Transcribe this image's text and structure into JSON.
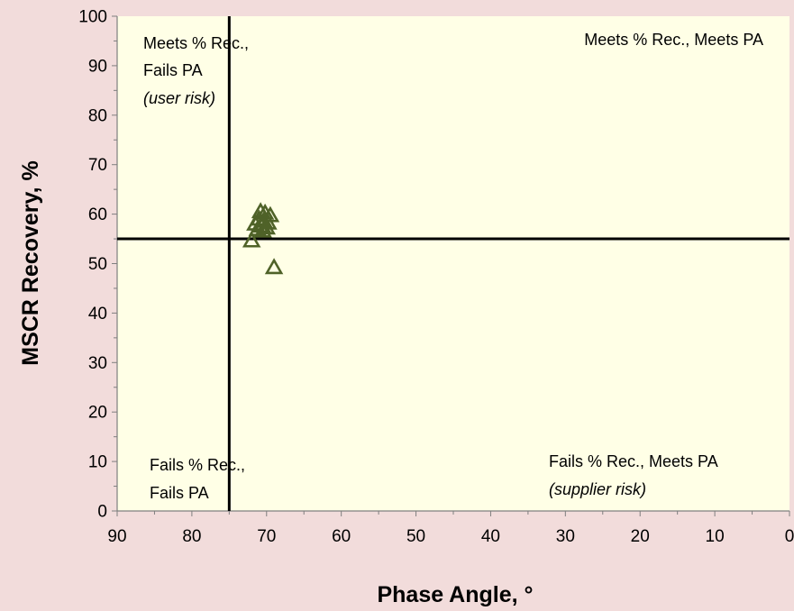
{
  "chart_data": {
    "type": "scatter",
    "title": "",
    "xlabel": "Phase Angle, °",
    "ylabel": "MSCR Recovery, %",
    "xlim": [
      90,
      0
    ],
    "ylim": [
      0,
      100
    ],
    "x_reversed": true,
    "x_ticks": [
      90,
      80,
      70,
      60,
      50,
      40,
      30,
      20,
      10,
      0
    ],
    "y_ticks": [
      0,
      10,
      20,
      30,
      40,
      50,
      60,
      70,
      80,
      90,
      100
    ],
    "grid": false,
    "plot_background": "#ffffe6",
    "page_background": "#f2dcdb",
    "marker": "open-triangle",
    "marker_color": "#4f6228",
    "reference_lines": {
      "vertical_x": 75,
      "horizontal_y": 55
    },
    "series": [
      {
        "points": [
          {
            "x": 70.8,
            "y": 60.5
          },
          {
            "x": 70.2,
            "y": 60.2
          },
          {
            "x": 69.5,
            "y": 59.7
          },
          {
            "x": 71.0,
            "y": 59.0
          },
          {
            "x": 70.4,
            "y": 58.6
          },
          {
            "x": 69.8,
            "y": 58.2
          },
          {
            "x": 71.5,
            "y": 58.0
          },
          {
            "x": 70.6,
            "y": 57.6
          },
          {
            "x": 70.0,
            "y": 57.2
          },
          {
            "x": 71.2,
            "y": 56.9
          },
          {
            "x": 70.5,
            "y": 56.6
          },
          {
            "x": 72.0,
            "y": 54.6
          },
          {
            "x": 69.0,
            "y": 49.2
          }
        ]
      }
    ],
    "annotations": {
      "top_left_line1": "Meets % Rec.,",
      "top_left_line2": "Fails PA",
      "top_left_line3": "(user risk)",
      "top_right": "Meets % Rec., Meets PA",
      "bottom_left_line1": "Fails % Rec.,",
      "bottom_left_line2": "Fails PA",
      "bottom_right_line1": "Fails % Rec., Meets PA",
      "bottom_right_line2": "(supplier risk)"
    }
  }
}
